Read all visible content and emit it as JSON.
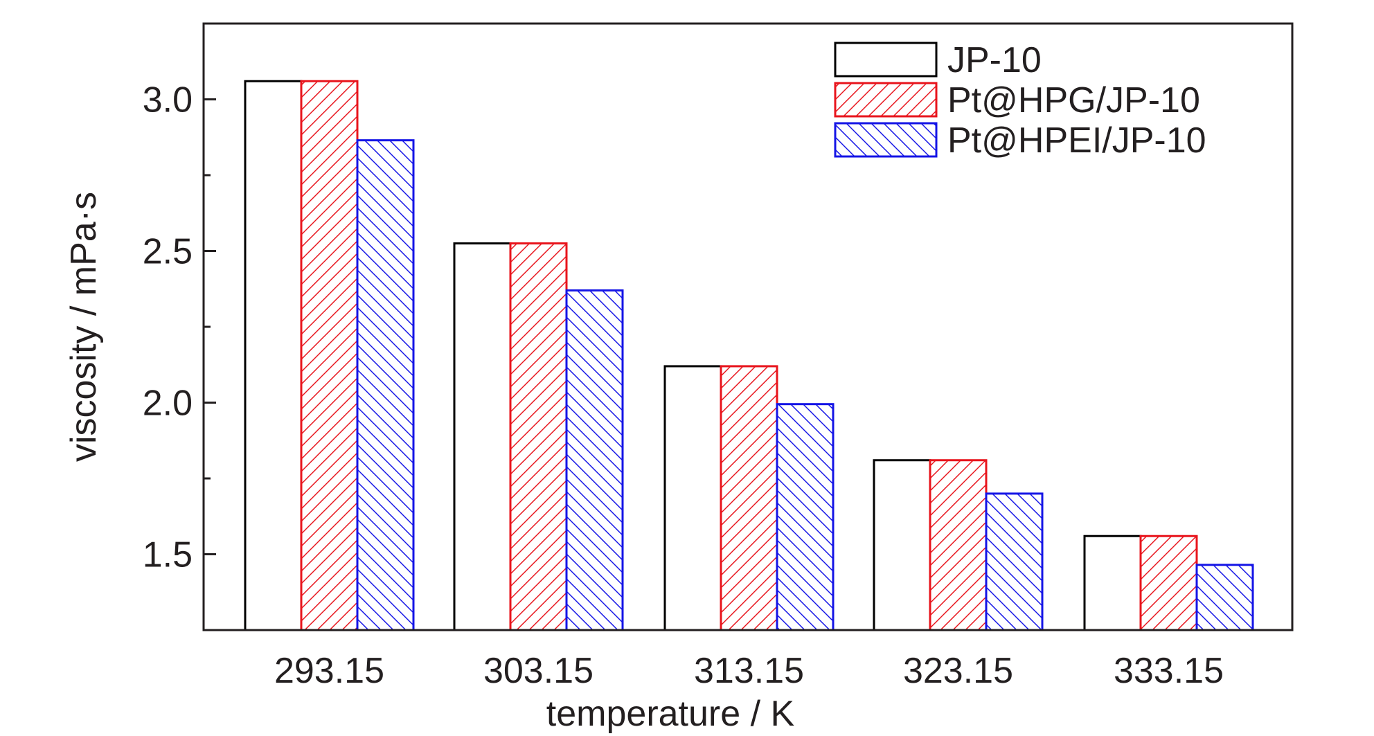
{
  "chart_data": {
    "type": "bar",
    "title": "",
    "xlabel": "temperature / K",
    "ylabel": "viscosity / mPa·s",
    "categories": [
      "293.15",
      "303.15",
      "313.15",
      "323.15",
      "333.15"
    ],
    "series": [
      {
        "name": "JP-10",
        "values": [
          3.06,
          2.525,
          2.12,
          1.81,
          1.56
        ],
        "color": "#000000",
        "pattern": "none"
      },
      {
        "name": "Pt@HPG/JP-10",
        "values": [
          3.06,
          2.525,
          2.12,
          1.81,
          1.56
        ],
        "color": "#e8141c",
        "pattern": "forward-diagonal-hatch"
      },
      {
        "name": "Pt@HPEI/JP-10",
        "values": [
          2.865,
          2.37,
          1.995,
          1.7,
          1.465
        ],
        "color": "#1414e6",
        "pattern": "backward-diagonal-hatch"
      }
    ],
    "ylim": [
      1.25,
      3.25
    ],
    "yticks_major": [
      "1.5",
      "2.0",
      "2.5",
      "3.0"
    ],
    "yticks_minor": [
      1.75,
      2.25,
      2.75
    ],
    "grid": false,
    "legend_position": "top-right"
  }
}
